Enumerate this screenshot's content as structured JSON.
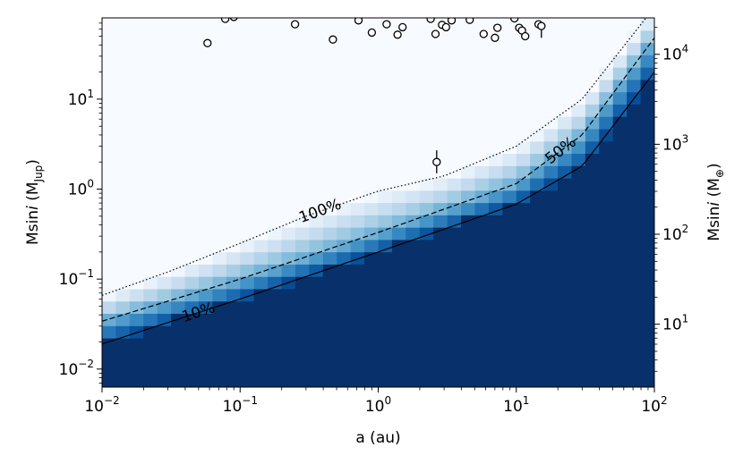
{
  "chart_data": {
    "type": "heatmap",
    "xlabel": "a (au)",
    "ylabel_left_parts": [
      "Msini",
      " (M",
      "Jup",
      ")"
    ],
    "ylabel_right_parts": [
      "Msini",
      " (M",
      "⊕",
      ")"
    ],
    "x_scale": "log",
    "y_scale": "log",
    "xlim": [
      0.01,
      100
    ],
    "ylim": [
      0.0063,
      80
    ],
    "right_ylim_earth_masses": [
      2.0,
      25400
    ],
    "x_ticks": [
      {
        "value": 0.01,
        "base": "10",
        "exp": "−2"
      },
      {
        "value": 0.1,
        "base": "10",
        "exp": "−1"
      },
      {
        "value": 1,
        "base": "10",
        "exp": "0"
      },
      {
        "value": 10,
        "base": "10",
        "exp": "1"
      },
      {
        "value": 100,
        "base": "10",
        "exp": "2"
      }
    ],
    "y_left_ticks": [
      {
        "value": 0.01,
        "base": "10",
        "exp": "−2"
      },
      {
        "value": 0.1,
        "base": "10",
        "exp": "−1"
      },
      {
        "value": 1,
        "base": "10",
        "exp": "0"
      },
      {
        "value": 10,
        "base": "10",
        "exp": "1"
      }
    ],
    "y_right_ticks": [
      {
        "value": 10,
        "base": "10",
        "exp": "1"
      },
      {
        "value": 100,
        "base": "10",
        "exp": "2"
      },
      {
        "value": 1000,
        "base": "10",
        "exp": "3"
      },
      {
        "value": 10000,
        "base": "10",
        "exp": "4"
      }
    ],
    "completeness_contours": [
      {
        "name": "10%",
        "label": "10%",
        "style": "solid",
        "points": [
          [
            0.01,
            0.019
          ],
          [
            0.1,
            0.06
          ],
          [
            1,
            0.2
          ],
          [
            10,
            0.68
          ],
          [
            30,
            1.8
          ],
          [
            100,
            20
          ]
        ]
      },
      {
        "name": "50%",
        "label": "50%",
        "style": "dashed",
        "points": [
          [
            0.01,
            0.034
          ],
          [
            0.1,
            0.1
          ],
          [
            1,
            0.33
          ],
          [
            10,
            1.15
          ],
          [
            30,
            4.0
          ],
          [
            100,
            48
          ]
        ]
      },
      {
        "name": "100%",
        "label": "100%",
        "style": "dotted",
        "points": [
          [
            0.01,
            0.066
          ],
          [
            0.03,
            0.12
          ],
          [
            0.1,
            0.25
          ],
          [
            0.3,
            0.5
          ],
          [
            1,
            0.95
          ],
          [
            3,
            1.4
          ],
          [
            10,
            3.0
          ],
          [
            30,
            10
          ],
          [
            100,
            105
          ]
        ]
      }
    ],
    "detected_companions": [
      {
        "a": 0.058,
        "msini": 42
      },
      {
        "a": 0.078,
        "msini": 78
      },
      {
        "a": 0.09,
        "msini": 82
      },
      {
        "a": 0.25,
        "msini": 68
      },
      {
        "a": 0.47,
        "msini": 46
      },
      {
        "a": 0.72,
        "msini": 75
      },
      {
        "a": 0.9,
        "msini": 55
      },
      {
        "a": 1.15,
        "msini": 68
      },
      {
        "a": 1.38,
        "msini": 52
      },
      {
        "a": 1.5,
        "msini": 63
      },
      {
        "a": 2.4,
        "msini": 78
      },
      {
        "a": 2.6,
        "msini": 53
      },
      {
        "a": 2.65,
        "msini": 2.0,
        "err_low": 1.5,
        "err_high": 2.7
      },
      {
        "a": 2.9,
        "msini": 67
      },
      {
        "a": 3.1,
        "msini": 63
      },
      {
        "a": 3.4,
        "msini": 75
      },
      {
        "a": 4.6,
        "msini": 76
      },
      {
        "a": 5.8,
        "msini": 53
      },
      {
        "a": 7.0,
        "msini": 48
      },
      {
        "a": 7.3,
        "msini": 62
      },
      {
        "a": 9.7,
        "msini": 79
      },
      {
        "a": 10.5,
        "msini": 62
      },
      {
        "a": 11.0,
        "msini": 58
      },
      {
        "a": 11.6,
        "msini": 50
      },
      {
        "a": 14.5,
        "msini": 68
      },
      {
        "a": 15.2,
        "msini": 65,
        "err_low": 48,
        "err_high": 70
      }
    ],
    "colors": {
      "high_completeness": "#08306b",
      "low_completeness": "#f7fbff",
      "marker_edge": "#000000",
      "marker_face": "#ffffff"
    }
  }
}
